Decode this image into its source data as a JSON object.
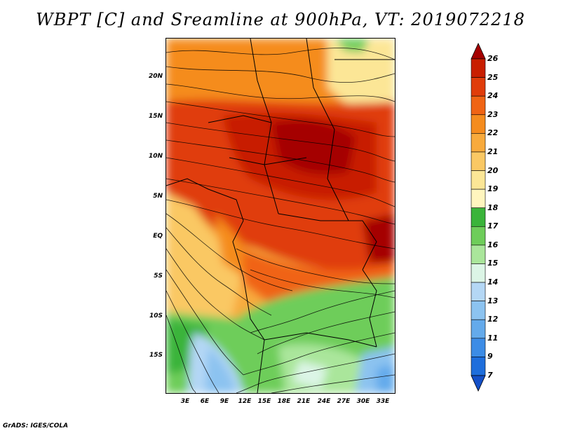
{
  "title": "WBPT [C] and Sreamline at 900hPa, VT: 2019072218",
  "footer": "GrADS: IGES/COLA",
  "lat_labels": [
    "20N",
    "15N",
    "10N",
    "5N",
    "EQ",
    "5S",
    "10S",
    "15S"
  ],
  "lon_labels": [
    "3E",
    "6E",
    "9E",
    "12E",
    "15E",
    "18E",
    "21E",
    "24E",
    "27E",
    "30E",
    "33E"
  ],
  "colorbar": {
    "labels": [
      "26",
      "25",
      "24",
      "23",
      "22",
      "21",
      "20",
      "19",
      "18",
      "17",
      "16",
      "15",
      "14",
      "13",
      "12",
      "11",
      "9",
      "7"
    ],
    "colors": [
      "#a50000",
      "#c81e00",
      "#e03c0a",
      "#f06414",
      "#f58c1e",
      "#f8aa3c",
      "#fac864",
      "#fce696",
      "#fff5be",
      "#3ab43a",
      "#6ecd5a",
      "#aae69b",
      "#dcf5e6",
      "#b4d7f5",
      "#8cc3f0",
      "#64aaeb",
      "#3c8ce6",
      "#1e6edc",
      "#1450c8"
    ]
  }
}
